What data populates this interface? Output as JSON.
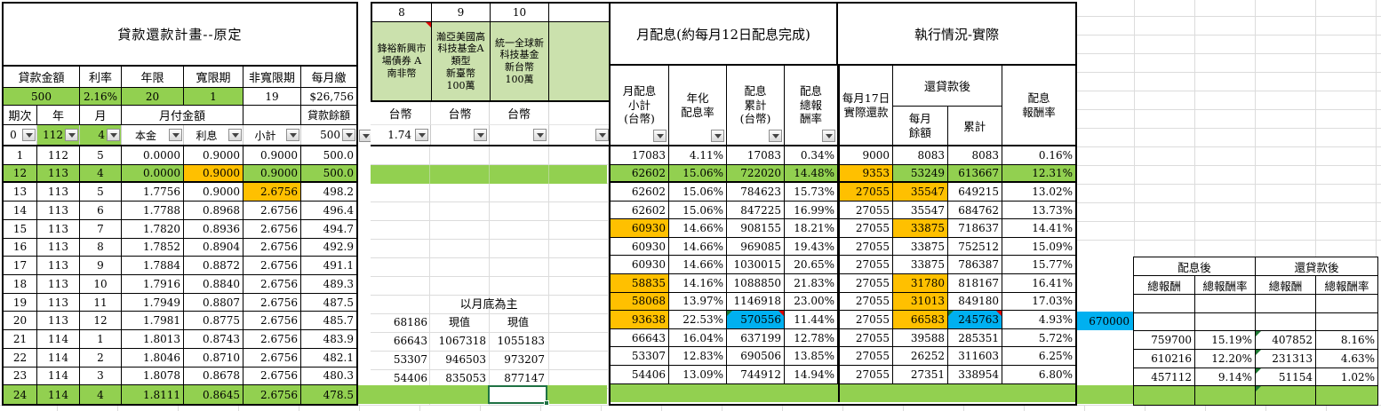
{
  "colors": {
    "row_green": "#92d050",
    "fund_green": "#cbe1ad",
    "orange": "#ffc000",
    "blue": "#00b0f0",
    "selection_green": "#1f7244"
  },
  "loan": {
    "title": "貸款還款計畫--原定",
    "summary_headers": [
      "貸款金額",
      "利率",
      "年限",
      "寬限期",
      "非寬限期",
      "每月繳"
    ],
    "summary_values": [
      "500",
      "2.16%",
      "20",
      "1",
      "19",
      "$26,756"
    ],
    "sub_headers": [
      "期次",
      "年",
      "月",
      "月付金額",
      "",
      "貸款餘額"
    ],
    "filter_values": [
      "0",
      "112",
      "4",
      "本金",
      "利息",
      "小計",
      "500"
    ],
    "rows": [
      {
        "cells": [
          "1",
          "112",
          "5",
          "0.0000",
          "0.9000",
          "0.9000",
          "500.0"
        ]
      },
      {
        "cells": [
          "12",
          "113",
          "4",
          "0.0000",
          "0.9000",
          "0.9000",
          "500.0"
        ],
        "green": true,
        "orange": [
          4
        ]
      },
      {
        "cells": [
          "13",
          "113",
          "5",
          "1.7756",
          "0.9000",
          "2.6756",
          "498.2"
        ],
        "orange": [
          5
        ]
      },
      {
        "cells": [
          "14",
          "113",
          "6",
          "1.7788",
          "0.8968",
          "2.6756",
          "496.4"
        ]
      },
      {
        "cells": [
          "15",
          "113",
          "7",
          "1.7820",
          "0.8936",
          "2.6756",
          "494.7"
        ]
      },
      {
        "cells": [
          "16",
          "113",
          "8",
          "1.7852",
          "0.8904",
          "2.6756",
          "492.9"
        ]
      },
      {
        "cells": [
          "17",
          "113",
          "9",
          "1.7884",
          "0.8872",
          "2.6756",
          "491.1"
        ]
      },
      {
        "cells": [
          "18",
          "113",
          "10",
          "1.7916",
          "0.8840",
          "2.6756",
          "489.3"
        ]
      },
      {
        "cells": [
          "19",
          "113",
          "11",
          "1.7949",
          "0.8807",
          "2.6756",
          "487.5"
        ]
      },
      {
        "cells": [
          "20",
          "113",
          "12",
          "1.7981",
          "0.8775",
          "2.6756",
          "485.7"
        ]
      },
      {
        "cells": [
          "21",
          "114",
          "1",
          "1.8013",
          "0.8743",
          "2.6756",
          "483.9"
        ]
      },
      {
        "cells": [
          "22",
          "114",
          "2",
          "1.8046",
          "0.8710",
          "2.6756",
          "482.1"
        ]
      },
      {
        "cells": [
          "23",
          "114",
          "3",
          "1.8078",
          "0.8678",
          "2.6756",
          "480.3"
        ]
      },
      {
        "cells": [
          "24",
          "114",
          "4",
          "1.8111",
          "0.8645",
          "2.6756",
          "478.5"
        ],
        "green": true
      }
    ]
  },
  "funds": {
    "numbers": [
      "8",
      "9",
      "10",
      ""
    ],
    "names": [
      "鋒裕新興市\n場債券 A\n南非幣",
      "瀚亞美國高\n科技基金A\n類型\n新臺幣\n100萬",
      "統一全球新\n科技基金\n新台幣\n100萬",
      ""
    ],
    "currency_labels": [
      "台幣",
      "台幣",
      "台幣",
      ""
    ],
    "filter_values": [
      "1.74",
      "",
      "",
      ""
    ],
    "note": "以月底為主",
    "rows": [
      {
        "cells": [
          "68186",
          "現值",
          "現值"
        ]
      },
      {
        "cells": [
          "66643",
          "1067318",
          "1055183"
        ]
      },
      {
        "cells": [
          "53307",
          "946503",
          "973207"
        ]
      },
      {
        "cells": [
          "54406",
          "835053",
          "877147"
        ]
      }
    ]
  },
  "dividend": {
    "title": "月配息(約每月12日配息完成)",
    "headers": [
      "月配息\n小計\n(台幣)",
      "年化\n配息率",
      "配息\n累計\n(台幣)",
      "配息\n總報\n酬率"
    ]
  },
  "execution": {
    "title": "執行情況-實際",
    "header_repay": "每月17日\n實際還款",
    "header_after_group": "還貸款後",
    "header_monthly_balance": "每月\n餘額",
    "header_cumulative": "累計",
    "header_return_rate": "配息\n報酬率"
  },
  "monthly_rows": [
    {
      "cells": [
        "17083",
        "4.11%",
        "17083",
        "0.34%",
        "9000",
        "8083",
        "8083",
        "0.16%"
      ]
    },
    {
      "cells": [
        "62602",
        "15.06%",
        "722020",
        "14.48%",
        "9353",
        "53249",
        "613667",
        "12.31%"
      ],
      "green": true,
      "orange": [
        4
      ]
    },
    {
      "cells": [
        "62602",
        "15.06%",
        "784623",
        "15.73%",
        "27055",
        "35547",
        "649215",
        "13.02%"
      ],
      "orange": [
        4,
        5
      ]
    },
    {
      "cells": [
        "62602",
        "15.06%",
        "847225",
        "16.99%",
        "27055",
        "35547",
        "684762",
        "13.73%"
      ]
    },
    {
      "cells": [
        "60930",
        "14.66%",
        "908155",
        "18.21%",
        "27055",
        "33875",
        "718637",
        "14.41%"
      ],
      "orange": [
        0,
        5
      ]
    },
    {
      "cells": [
        "60930",
        "14.66%",
        "969085",
        "19.43%",
        "27055",
        "33875",
        "752512",
        "15.09%"
      ]
    },
    {
      "cells": [
        "60930",
        "14.66%",
        "1030015",
        "20.65%",
        "27055",
        "33875",
        "786387",
        "15.77%"
      ]
    },
    {
      "cells": [
        "58835",
        "14.16%",
        "1088850",
        "21.83%",
        "27055",
        "31780",
        "818167",
        "16.41%"
      ],
      "orange": [
        0,
        5
      ]
    },
    {
      "cells": [
        "58068",
        "13.97%",
        "1146918",
        "23.00%",
        "27055",
        "31013",
        "849180",
        "17.03%"
      ],
      "orange": [
        0,
        5
      ]
    },
    {
      "cells": [
        "93638",
        "22.53%",
        "570556",
        "11.44%",
        "27055",
        "66583",
        "245763",
        "4.93%"
      ],
      "orange": [
        0,
        5
      ],
      "blue": [
        2,
        6
      ],
      "flag": [
        2,
        6
      ]
    },
    {
      "cells": [
        "66643",
        "16.04%",
        "637199",
        "12.78%",
        "27055",
        "39588",
        "285351",
        "5.72%"
      ]
    },
    {
      "cells": [
        "53307",
        "12.83%",
        "690506",
        "13.85%",
        "27055",
        "26252",
        "311603",
        "6.25%"
      ]
    },
    {
      "cells": [
        "54406",
        "13.09%",
        "744912",
        "14.94%",
        "27055",
        "27351",
        "338954",
        "6.80%"
      ]
    },
    {
      "cells": [
        "",
        "",
        "",
        "",
        "",
        "",
        "",
        ""
      ],
      "green": true,
      "noborders": true
    }
  ],
  "extra_cell": "670000",
  "returns": {
    "group_headers": [
      "配息後",
      "還貸款後"
    ],
    "col_headers": [
      "總報酬",
      "總報酬率",
      "總報酬",
      "總報酬率"
    ],
    "rows": [
      {
        "cells": [
          "",
          "",
          "",
          ""
        ]
      },
      {
        "cells": [
          "",
          "",
          "",
          ""
        ]
      },
      {
        "cells": [
          "759700",
          "15.19%",
          "407852",
          "8.16%"
        ],
        "flag": [
          2
        ]
      },
      {
        "cells": [
          "610216",
          "12.20%",
          "231313",
          "4.63%"
        ],
        "flag": [
          2
        ]
      },
      {
        "cells": [
          "457112",
          "9.14%",
          "51154",
          "1.02%"
        ],
        "flag": [
          2
        ]
      },
      {
        "cells": [
          "",
          "",
          "",
          ""
        ],
        "green": true,
        "flag": [
          2
        ]
      }
    ]
  }
}
